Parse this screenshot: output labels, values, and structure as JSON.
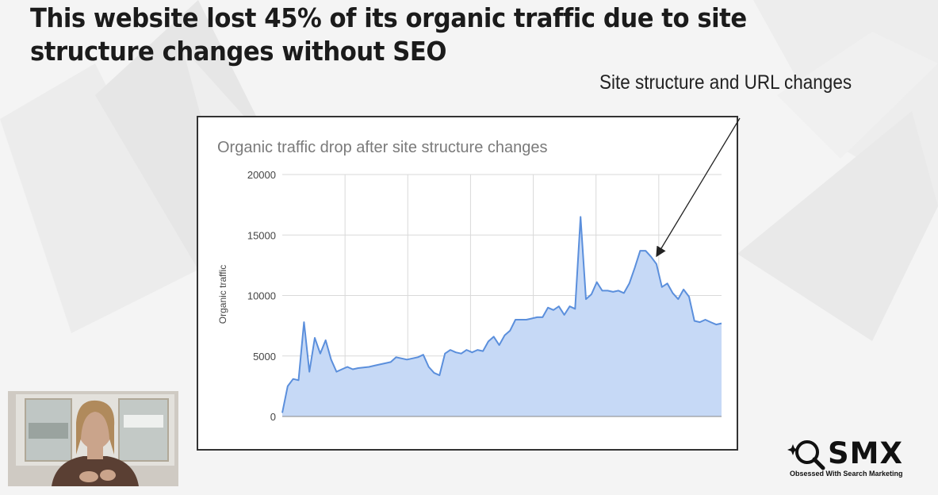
{
  "slide": {
    "title": "This website lost 45% of its organic traffic due to site structure changes without SEO",
    "annotation": "Site structure and URL changes"
  },
  "logo": {
    "name": "SMX",
    "tagline": "Obsessed With Search Marketing",
    "icon": "magnifier-icon"
  },
  "webcam": {
    "description_icon": "presenter-video"
  },
  "colors": {
    "area_fill": "#c6d9f6",
    "line": "#5b8fdc",
    "grid": "#d9d9d9",
    "chart_title": "#7a7a7a"
  },
  "chart_data": {
    "type": "area",
    "title": "Organic traffic drop after site structure changes",
    "xlabel": "",
    "ylabel": "Organic traffic",
    "ylim": [
      0,
      20000
    ],
    "yticks": [
      0,
      5000,
      10000,
      15000,
      20000
    ],
    "grid": true,
    "legend": "none",
    "series": [
      {
        "values": [
          300,
          2500,
          3100,
          3000,
          7800,
          3700,
          6500,
          5200,
          6300,
          4700,
          3700,
          3900,
          4100,
          3900,
          4000,
          4050,
          4100,
          4200,
          4300,
          4400,
          4500,
          4900,
          4800,
          4700,
          4800,
          4900,
          5100,
          4100,
          3600,
          3400,
          5200,
          5500,
          5300,
          5200,
          5500,
          5300,
          5500,
          5400,
          6200,
          6600,
          5900,
          6700,
          7100,
          8000,
          8000,
          8000,
          8100,
          8200,
          8200,
          9000,
          8800,
          9100,
          8400,
          9100,
          8900,
          16500,
          9700,
          10100,
          11100,
          10400,
          10400,
          10300,
          10400,
          10200,
          11000,
          12300,
          13700,
          13700,
          13200,
          12600,
          10700,
          11000,
          10200,
          9700,
          10500,
          9900,
          7900,
          7800,
          8000,
          7800,
          7600,
          7700
        ]
      }
    ]
  }
}
